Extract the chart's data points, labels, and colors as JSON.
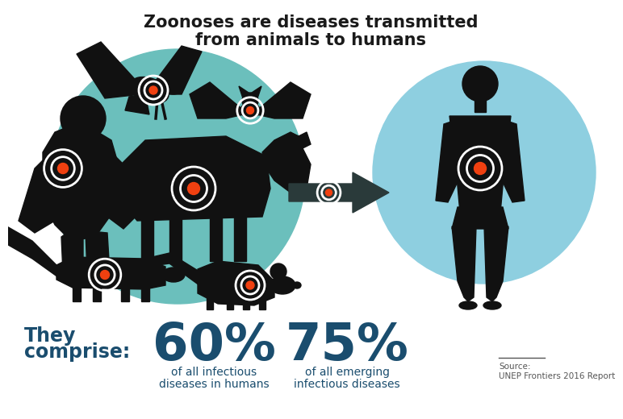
{
  "title_line1": "Zoonoses are diseases transmitted",
  "title_line2": "from animals to humans",
  "title_color": "#1a1a1a",
  "title_fontsize": 15,
  "bg_color": "#ffffff",
  "teal_circle_color": "#6bbfbc",
  "blue_circle_color": "#8ecfe0",
  "animal_color": "#111111",
  "human_color": "#111111",
  "arrow_color": "#2a3a3a",
  "arrow_shaft_color": "#3d5a5a",
  "target_inner_color": "#f04010",
  "target_ring_color": "#ffffff",
  "stat1_pct": "60%",
  "stat1_label1": "of all infectious",
  "stat1_label2": "diseases in humans",
  "stat2_pct": "75%",
  "stat2_label1": "of all emerging",
  "stat2_label2": "infectious diseases",
  "they_line1": "They",
  "they_line2": "comprise:",
  "stat_color": "#1a4d6e",
  "they_comprise_color": "#1a4d6e",
  "source_line1": "Source:",
  "source_line2": "UNEP Frontiers 2016 Report",
  "source_color": "#555555",
  "pct_fontsize": 46,
  "label_fontsize": 10,
  "they_fontsize": 17
}
